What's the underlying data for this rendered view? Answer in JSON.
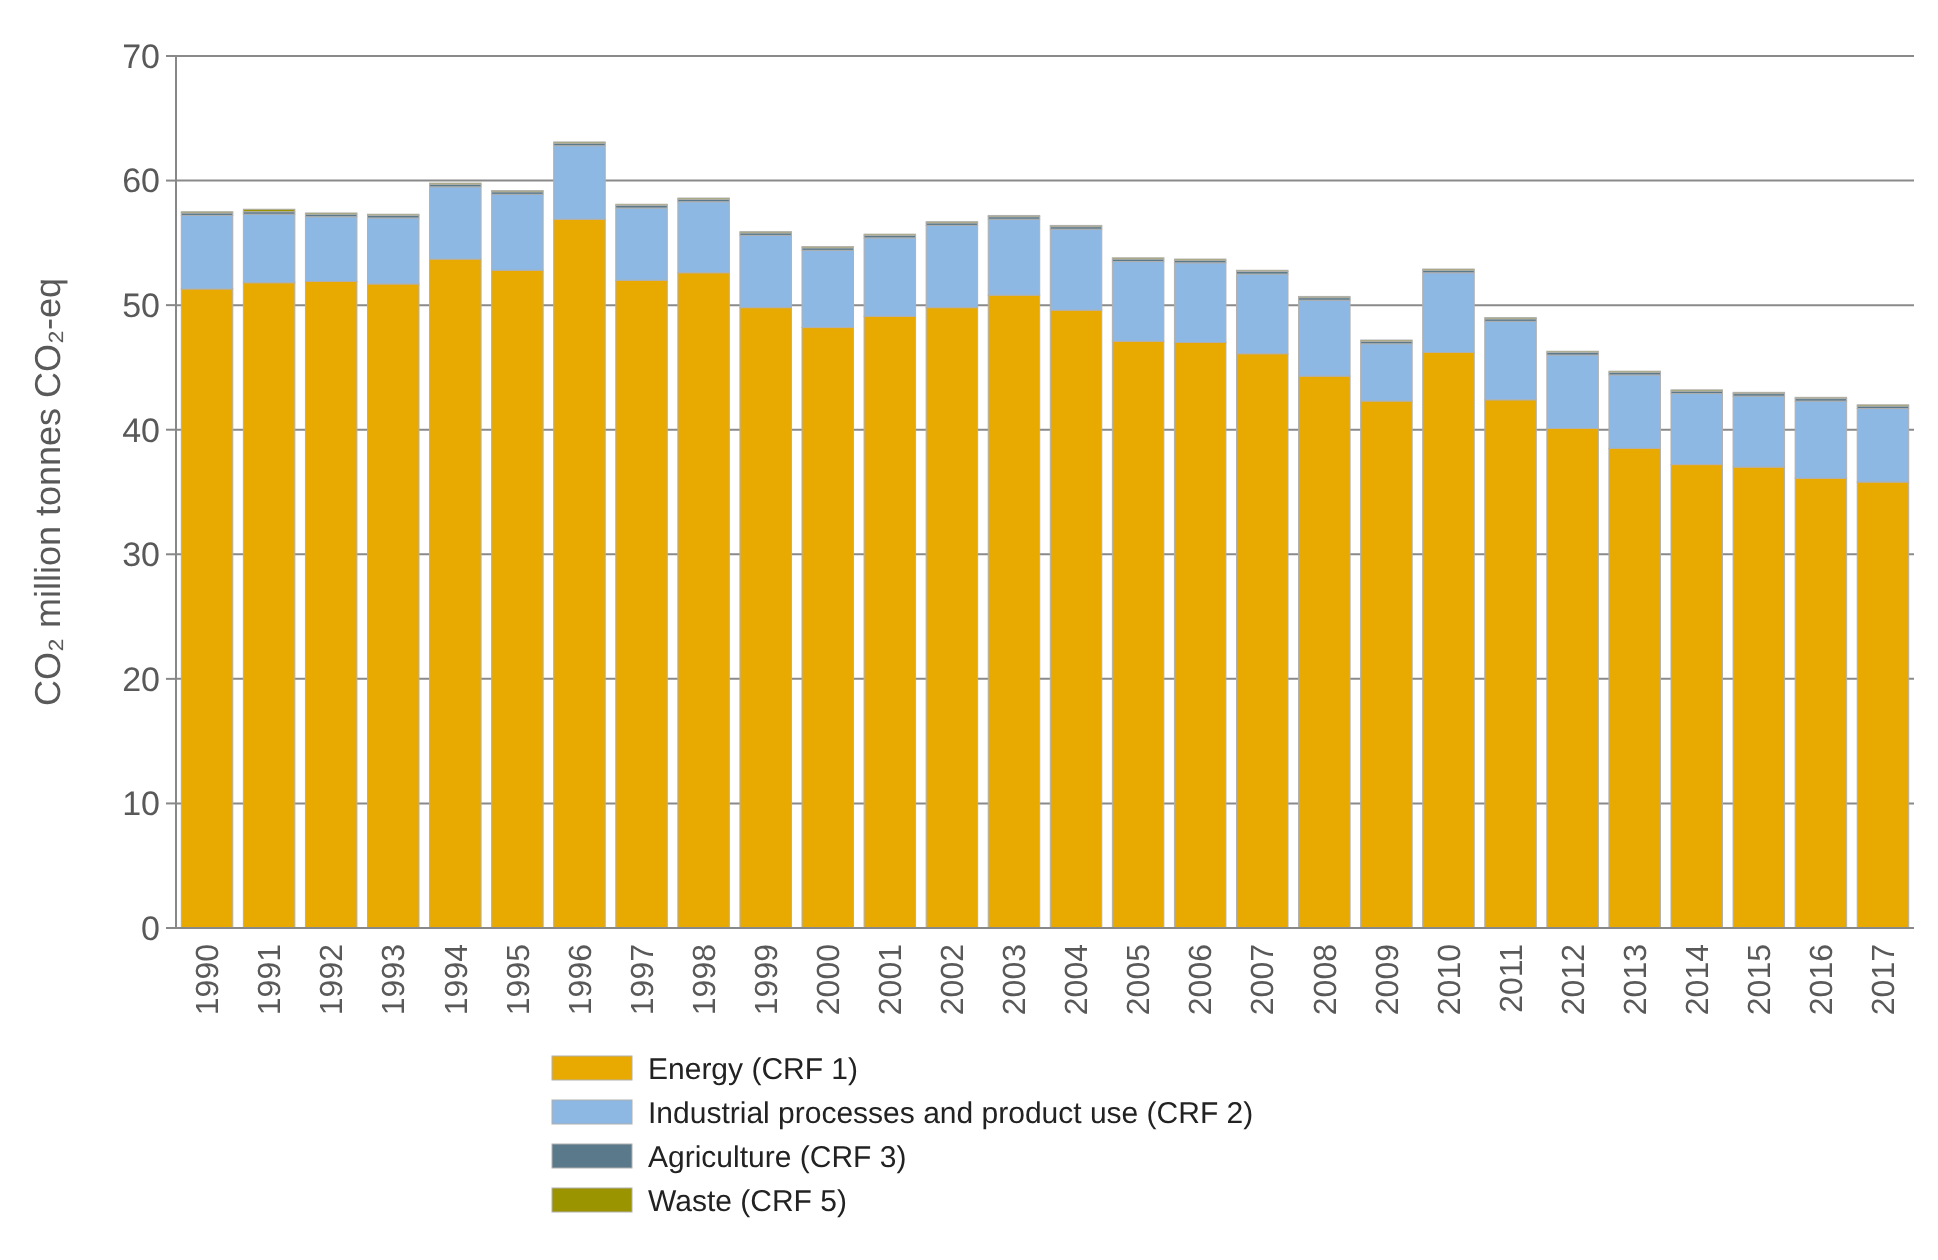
{
  "chart_data": {
    "type": "bar",
    "stacked": true,
    "ylabel": "CO₂ million tonnes CO₂-eq",
    "categories": [
      "1990",
      "1991",
      "1992",
      "1993",
      "1994",
      "1995",
      "1996",
      "1997",
      "1998",
      "1999",
      "2000",
      "2001",
      "2002",
      "2003",
      "2004",
      "2005",
      "2006",
      "2007",
      "2008",
      "2009",
      "2010",
      "2011",
      "2012",
      "2013",
      "2014",
      "2015",
      "2016",
      "2017"
    ],
    "series": [
      {
        "name": "Energy (CRF 1)",
        "color": "#e8a900",
        "values": [
          51.3,
          51.8,
          51.9,
          51.7,
          53.7,
          52.8,
          56.9,
          52.0,
          52.6,
          49.8,
          48.2,
          49.1,
          49.8,
          50.8,
          49.6,
          47.1,
          47.0,
          46.1,
          44.3,
          42.3,
          46.2,
          42.4,
          40.1,
          38.5,
          37.2,
          37.0,
          36.1,
          35.8
        ]
      },
      {
        "name": "Industrial processes and product use (CRF 2)",
        "color": "#8cb8e3",
        "values": [
          5.9,
          5.5,
          5.2,
          5.3,
          5.8,
          6.1,
          5.9,
          5.8,
          5.7,
          5.8,
          6.2,
          6.3,
          6.6,
          6.1,
          6.5,
          6.4,
          6.4,
          6.4,
          6.1,
          4.6,
          6.4,
          6.3,
          5.9,
          5.9,
          5.7,
          5.7,
          6.2,
          5.9
        ]
      },
      {
        "name": "Agriculture (CRF 3)",
        "color": "#5a7a8c",
        "values": [
          0.2,
          0.2,
          0.2,
          0.2,
          0.2,
          0.2,
          0.2,
          0.2,
          0.2,
          0.2,
          0.2,
          0.2,
          0.2,
          0.2,
          0.2,
          0.2,
          0.2,
          0.2,
          0.2,
          0.2,
          0.2,
          0.2,
          0.2,
          0.2,
          0.2,
          0.2,
          0.2,
          0.2
        ]
      },
      {
        "name": "Waste (CRF 5)",
        "color": "#9a9400",
        "values": [
          0.1,
          0.2,
          0.1,
          0.1,
          0.1,
          0.1,
          0.1,
          0.1,
          0.1,
          0.1,
          0.1,
          0.1,
          0.1,
          0.1,
          0.1,
          0.1,
          0.1,
          0.1,
          0.1,
          0.1,
          0.1,
          0.1,
          0.1,
          0.1,
          0.1,
          0.1,
          0.1,
          0.1
        ]
      }
    ],
    "ylim": [
      0,
      70
    ],
    "yticks": [
      0,
      10,
      20,
      30,
      40,
      50,
      60,
      70
    ],
    "grid": "y",
    "legend": "bottom"
  }
}
